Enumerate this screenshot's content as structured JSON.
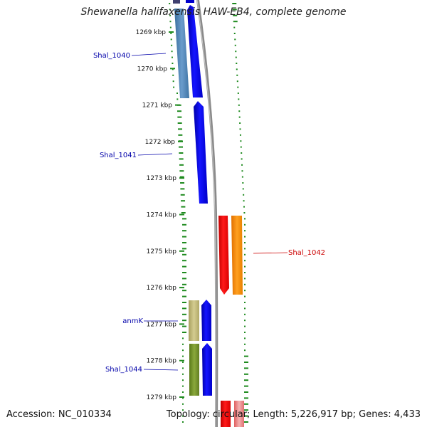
{
  "title": "Shewanella halifaxensis HAW-EB4, complete genome",
  "accession_text": "Accession: NC_010334",
  "topology_text": "Topology: circular; Length: 5,226,917 bp; Genes: 4,433",
  "colors": {
    "forward_strand": "#0000ee",
    "reverse_strand": "#ee0000",
    "cog_blue": "#4f86b8",
    "cog_orange": "#ff8800",
    "cog_khaki": "#b8b070",
    "cog_olive": "#6b8a2a",
    "backbone": "#888888",
    "gc_track": "#1e8a1e"
  },
  "ticks": [
    {
      "label": "1269 kbp"
    },
    {
      "label": "1270 kbp"
    },
    {
      "label": "1271 kbp"
    },
    {
      "label": "1272 kbp"
    },
    {
      "label": "1273 kbp"
    },
    {
      "label": "1274 kbp"
    },
    {
      "label": "1275 kbp"
    },
    {
      "label": "1276 kbp"
    },
    {
      "label": "1277 kbp"
    },
    {
      "label": "1278 kbp"
    },
    {
      "label": "1279 kbp"
    }
  ],
  "genes": [
    {
      "label": "Shal_1040",
      "strand": "forward",
      "color": "#0000ee"
    },
    {
      "label": "Shal_1041",
      "strand": "forward",
      "color": "#0000ee"
    },
    {
      "label": "Shal_1042",
      "strand": "reverse",
      "color": "#ee0000"
    },
    {
      "label": "anmK",
      "strand": "forward",
      "color": "#0000ee"
    },
    {
      "label": "Shal_1044",
      "strand": "forward",
      "color": "#0000ee"
    }
  ]
}
